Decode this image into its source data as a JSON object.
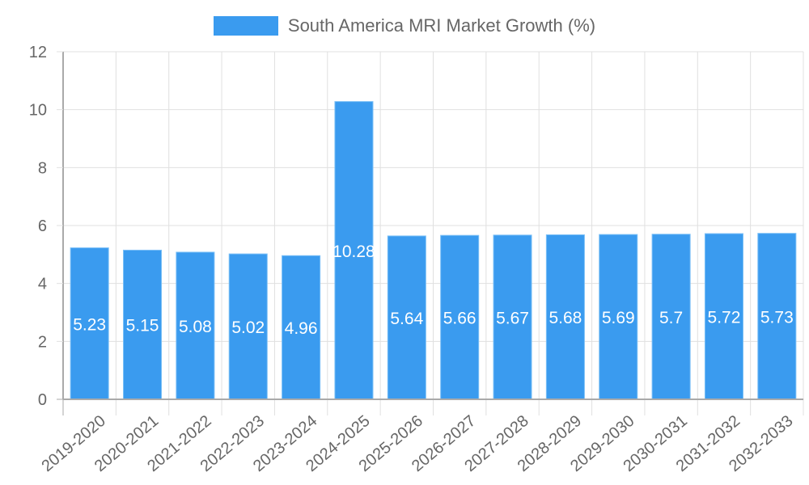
{
  "legend": {
    "label": "South America MRI Market Growth (%)",
    "color": "#3a9bef"
  },
  "colors": {
    "bar": "#3a9bef",
    "bar_border": "#7cc0f7",
    "grid": "#e0e0e0",
    "axis": "#aaaaaa",
    "tick_text": "#666666",
    "data_label": "#ffffff"
  },
  "chart_data": {
    "type": "bar",
    "title": "",
    "xlabel": "",
    "ylabel": "",
    "legend": [
      "South America MRI Market Growth (%)"
    ],
    "legend_position": "top",
    "grid": true,
    "ylim": [
      0,
      12
    ],
    "yticks": [
      0,
      2,
      4,
      6,
      8,
      10,
      12
    ],
    "categories": [
      "2019-2020",
      "2020-2021",
      "2021-2022",
      "2022-2023",
      "2023-2024",
      "2024-2025",
      "2025-2026",
      "2026-2027",
      "2027-2028",
      "2028-2029",
      "2029-2030",
      "2030-2031",
      "2031-2032",
      "2032-2033"
    ],
    "series": [
      {
        "name": "South America MRI Market Growth (%)",
        "values": [
          5.23,
          5.15,
          5.08,
          5.02,
          4.96,
          10.28,
          5.64,
          5.66,
          5.67,
          5.68,
          5.69,
          5.7,
          5.72,
          5.73
        ],
        "labels": [
          "5.23",
          "5.15",
          "5.08",
          "5.02",
          "4.96",
          "10.28",
          "5.64",
          "5.66",
          "5.67",
          "5.68",
          "5.69",
          "5.7",
          "5.72",
          "5.73"
        ]
      }
    ]
  }
}
